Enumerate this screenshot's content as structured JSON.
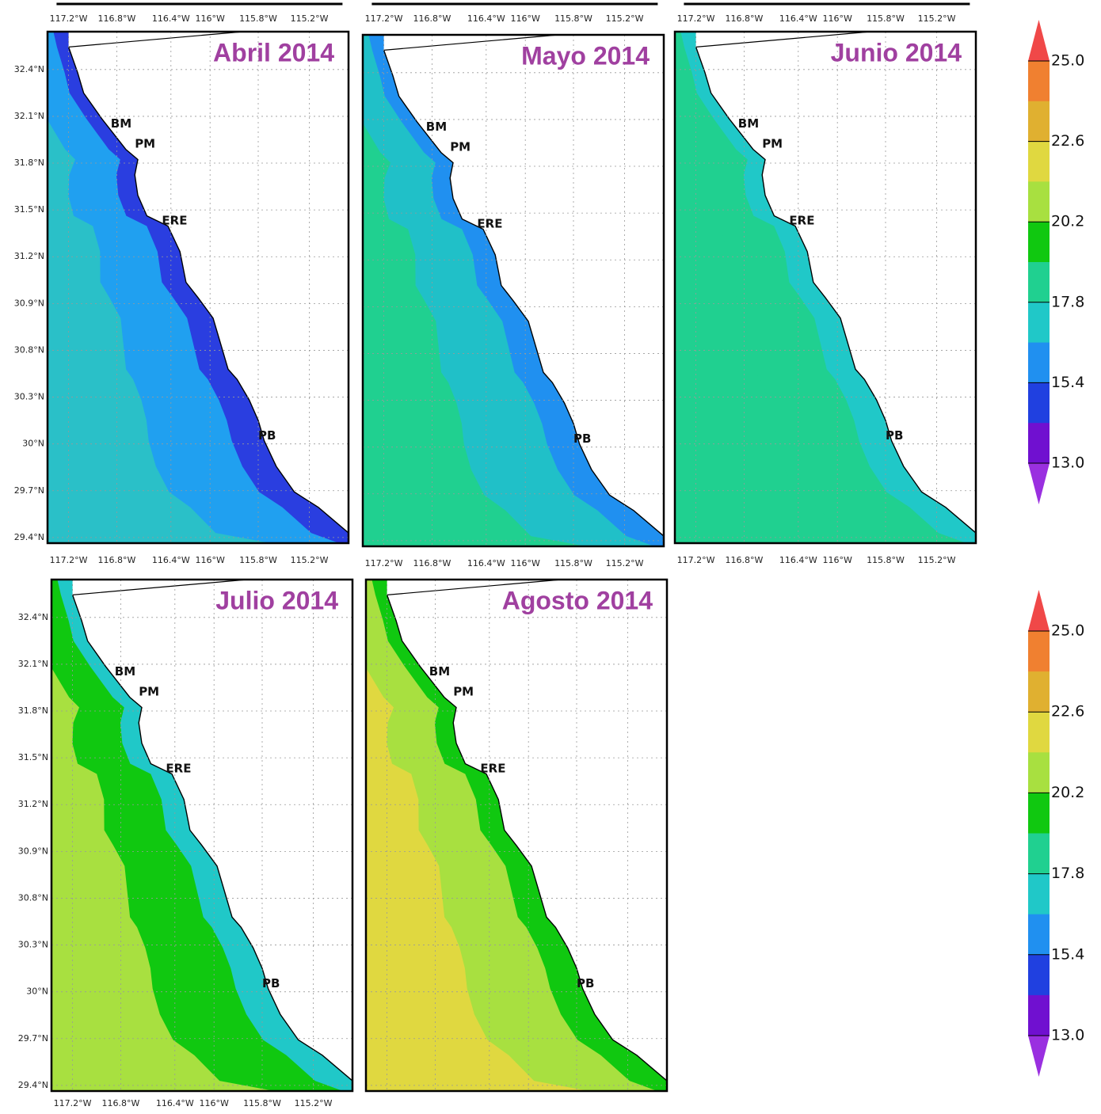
{
  "panels": [
    {
      "title": "Abril 2014",
      "colors": {
        "offshore": "#2ac0c8",
        "mid": "#20a0f0",
        "coastal": "#2a3ee0"
      }
    },
    {
      "title": "Mayo 2014",
      "colors": {
        "offshore": "#20d090",
        "mid": "#20c0c8",
        "coastal": "#2090f0"
      }
    },
    {
      "title": "Junio 2014",
      "colors": {
        "offshore": "#20d090",
        "mid": "#20d090",
        "coastal": "#20c8c8"
      }
    },
    {
      "title": "Julio 2014",
      "colors": {
        "offshore": "#a8e040",
        "mid": "#10c810",
        "coastal": "#20c8c8"
      }
    },
    {
      "title": "Agosto 2014",
      "colors": {
        "offshore": "#e0d840",
        "mid": "#a8e040",
        "coastal": "#10c810"
      }
    }
  ],
  "places": [
    "BM",
    "PM",
    "ERE",
    "PB"
  ],
  "longitude_labels": [
    "117.2°W",
    "116.8°W",
    "116.4°W",
    "116°W",
    "115.8°W",
    "115.2°W"
  ],
  "latitude_labels": [
    "32.4°N",
    "32.1°N",
    "31.8°N",
    "31.5°N",
    "31.2°N",
    "30.9°N",
    "30.8°N",
    "30.3°N",
    "30°N",
    "29.7°N",
    "29.4°N"
  ],
  "colorbar": {
    "labels": [
      "25.0",
      "22.6",
      "20.2",
      "17.8",
      "15.4",
      "13.0"
    ],
    "colors": [
      "#f04848",
      "#f08030",
      "#e0b030",
      "#e0d840",
      "#a8e040",
      "#10c810",
      "#20d090",
      "#20c8c8",
      "#2090f0",
      "#2040e0",
      "#7010d0",
      "#9a30e0"
    ]
  }
}
